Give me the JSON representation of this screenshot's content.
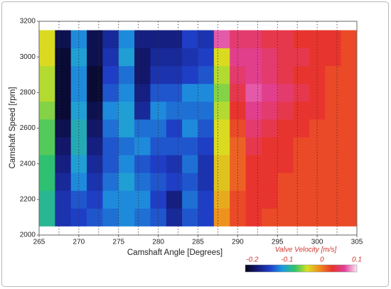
{
  "chart_data": {
    "type": "heatmap",
    "xlabel": "Camshaft Angle [Degrees]",
    "ylabel": "Camshaft Speed [rpm]",
    "colorbar_label": "Valve Velocity [m/s]",
    "x": [
      266,
      268,
      270,
      272,
      274,
      276,
      278,
      280,
      282,
      284,
      286,
      288,
      290,
      292,
      294,
      296,
      298,
      300,
      302,
      304
    ],
    "y": [
      2100,
      2200,
      2300,
      2400,
      2500,
      2600,
      2700,
      2800,
      2900,
      3000,
      3100
    ],
    "values": [
      [
        -0.09,
        -0.16,
        -0.15,
        -0.14,
        -0.13,
        -0.12,
        -0.13,
        -0.14,
        -0.17,
        -0.14,
        -0.15,
        -0.01,
        0.02,
        0.03,
        0.02,
        0.02,
        0.02,
        0.02,
        0.02,
        0.02
      ],
      [
        -0.09,
        -0.16,
        -0.14,
        -0.15,
        -0.12,
        -0.12,
        -0.12,
        -0.15,
        -0.18,
        -0.13,
        -0.15,
        -0.02,
        0.02,
        0.03,
        0.03,
        0.02,
        0.02,
        0.02,
        0.02,
        0.02
      ],
      [
        -0.08,
        -0.17,
        -0.12,
        -0.16,
        -0.13,
        -0.11,
        -0.13,
        -0.14,
        -0.15,
        -0.14,
        -0.16,
        -0.03,
        0.01,
        0.03,
        0.03,
        0.02,
        0.02,
        0.02,
        0.02,
        0.02
      ],
      [
        -0.08,
        -0.18,
        -0.11,
        -0.17,
        -0.14,
        -0.12,
        -0.14,
        -0.15,
        -0.16,
        -0.13,
        -0.16,
        -0.03,
        0.01,
        0.03,
        0.03,
        0.03,
        0.02,
        0.02,
        0.02,
        0.02
      ],
      [
        -0.07,
        -0.19,
        -0.1,
        -0.18,
        -0.14,
        -0.13,
        -0.12,
        -0.14,
        -0.14,
        -0.14,
        -0.15,
        -0.04,
        0.01,
        0.04,
        0.03,
        0.03,
        0.02,
        0.02,
        0.02,
        0.02
      ],
      [
        -0.07,
        -0.2,
        -0.1,
        -0.19,
        -0.13,
        -0.11,
        -0.13,
        -0.13,
        -0.15,
        -0.12,
        -0.14,
        -0.04,
        0.02,
        0.05,
        0.04,
        0.03,
        0.03,
        0.02,
        0.02,
        0.02
      ],
      [
        -0.06,
        -0.21,
        -0.11,
        -0.2,
        -0.12,
        -0.11,
        -0.17,
        -0.12,
        -0.13,
        -0.13,
        -0.13,
        -0.05,
        0.03,
        0.06,
        0.05,
        0.04,
        0.03,
        0.03,
        0.02,
        0.02
      ],
      [
        -0.05,
        -0.21,
        -0.12,
        -0.21,
        -0.14,
        -0.12,
        -0.18,
        -0.14,
        -0.14,
        -0.12,
        -0.12,
        -0.06,
        0.04,
        0.07,
        0.06,
        0.05,
        0.04,
        0.03,
        0.02,
        0.02
      ],
      [
        -0.05,
        -0.21,
        -0.12,
        -0.21,
        -0.15,
        -0.13,
        -0.19,
        -0.16,
        -0.16,
        -0.15,
        -0.14,
        -0.05,
        0.05,
        0.06,
        0.05,
        0.04,
        0.03,
        0.03,
        0.02,
        0.02
      ],
      [
        -0.04,
        -0.21,
        -0.11,
        -0.2,
        -0.16,
        -0.11,
        -0.19,
        -0.17,
        -0.17,
        -0.16,
        -0.15,
        -0.04,
        0.06,
        0.06,
        0.05,
        0.04,
        0.04,
        0.03,
        0.03,
        0.02
      ],
      [
        -0.04,
        -0.2,
        -0.12,
        -0.2,
        -0.17,
        -0.12,
        -0.18,
        -0.18,
        -0.18,
        -0.15,
        -0.16,
        0.07,
        0.05,
        0.05,
        0.04,
        0.04,
        0.03,
        0.03,
        0.03,
        0.02
      ]
    ],
    "xlim": [
      265,
      305
    ],
    "xticks": [
      265,
      270,
      275,
      280,
      285,
      290,
      295,
      300,
      305
    ],
    "xminor": [
      267.5,
      270,
      272.5,
      275,
      277.5,
      280,
      282.5,
      285,
      287.5,
      290,
      292.5,
      295,
      297.5,
      300,
      302.5
    ],
    "ylim": [
      2000,
      3200
    ],
    "yticks": [
      2000,
      2200,
      2400,
      2600,
      2800,
      3000,
      3200
    ],
    "zlim": [
      -0.22,
      0.1
    ],
    "zticks": [
      -0.2,
      -0.1,
      0,
      0.1
    ],
    "colorscale": [
      "#05051a",
      "#141a78",
      "#1f3fc8",
      "#1e9be0",
      "#2fc46a",
      "#d8e020",
      "#f08a1e",
      "#e8342a",
      "#e0409a",
      "#fbe8f4"
    ]
  }
}
